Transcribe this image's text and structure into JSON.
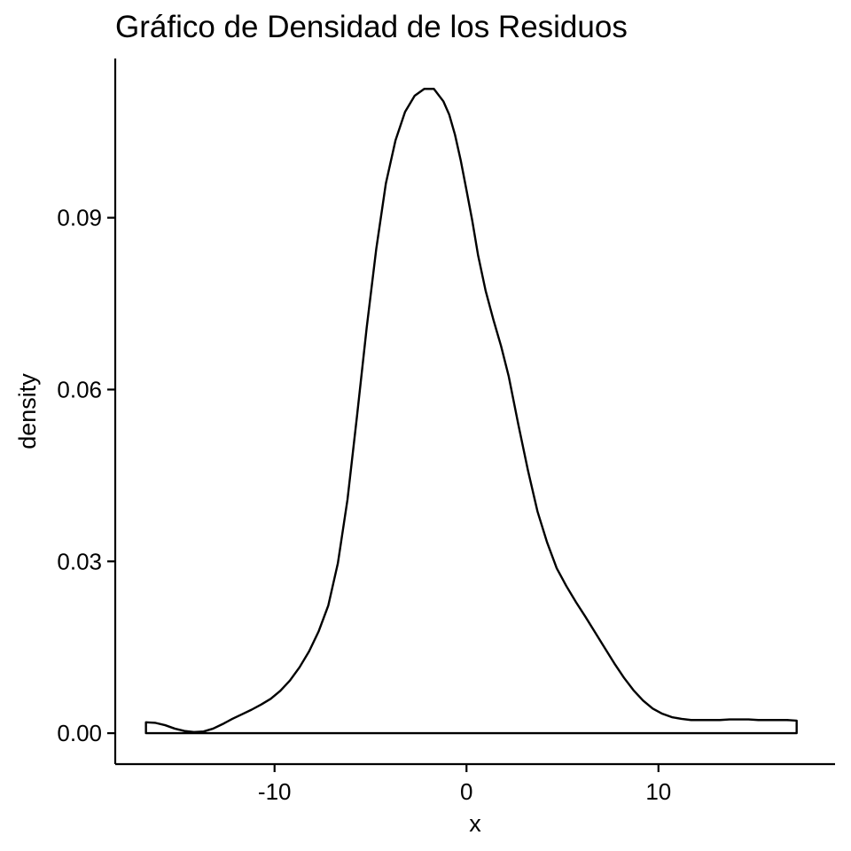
{
  "chart_data": {
    "type": "area",
    "title": "Gráfico de Densidad de los Residuos",
    "xlabel": "x",
    "ylabel": "density",
    "xlim": [
      -18.3,
      19.2
    ],
    "ylim": [
      -0.0054,
      0.1178
    ],
    "x_ticks": [
      -10,
      0,
      10
    ],
    "x_tick_labels": [
      "-10",
      "0",
      "10"
    ],
    "y_ticks": [
      0,
      0.03,
      0.06,
      0.09
    ],
    "y_tick_labels": [
      "0.00",
      "0.03",
      "0.06",
      "0.09"
    ],
    "grid": false,
    "legend": "none",
    "line_color": "#000000",
    "fill_color": "none",
    "series": [
      {
        "x": [
          -16.7,
          -16.2,
          -15.7,
          -15.2,
          -14.7,
          -14.2,
          -13.7,
          -13.2,
          -12.7,
          -12.2,
          -11.7,
          -11.2,
          -10.7,
          -10.2,
          -9.7,
          -9.2,
          -8.7,
          -8.2,
          -7.7,
          -7.2,
          -6.7,
          -6.2,
          -5.7,
          -5.2,
          -4.7,
          -4.2,
          -3.7,
          -3.2,
          -2.7,
          -2.2,
          -1.7,
          -1.2,
          -0.9,
          -0.6,
          -0.3,
          0.0,
          0.3,
          0.6,
          1.0,
          1.4,
          1.8,
          2.2,
          2.7,
          3.2,
          3.7,
          4.2,
          4.7,
          5.2,
          5.7,
          6.2,
          6.7,
          7.2,
          7.7,
          8.2,
          8.7,
          9.2,
          9.7,
          10.2,
          10.7,
          11.2,
          11.7,
          12.2,
          12.7,
          13.2,
          13.7,
          14.2,
          14.7,
          15.2,
          15.7,
          16.2,
          16.7,
          17.2
        ],
        "y": [
          0.0019,
          0.0018,
          0.0014,
          0.0008,
          0.0004,
          0.0002,
          0.0003,
          0.0008,
          0.0016,
          0.0025,
          0.0033,
          0.0041,
          0.005,
          0.006,
          0.0074,
          0.0092,
          0.0115,
          0.0143,
          0.0178,
          0.0223,
          0.0297,
          0.0408,
          0.0555,
          0.0708,
          0.0846,
          0.096,
          0.1035,
          0.1085,
          0.1113,
          0.1125,
          0.1125,
          0.1103,
          0.108,
          0.1045,
          0.1,
          0.0948,
          0.0895,
          0.0835,
          0.0772,
          0.0722,
          0.0676,
          0.0623,
          0.0539,
          0.0459,
          0.0387,
          0.0333,
          0.0288,
          0.0257,
          0.0229,
          0.0203,
          0.0176,
          0.0149,
          0.0122,
          0.0097,
          0.0075,
          0.0057,
          0.0043,
          0.0034,
          0.0028,
          0.0025,
          0.0023,
          0.0023,
          0.0023,
          0.0023,
          0.0024,
          0.0024,
          0.0024,
          0.0023,
          0.0023,
          0.0023,
          0.0023,
          0.0022
        ]
      }
    ]
  }
}
